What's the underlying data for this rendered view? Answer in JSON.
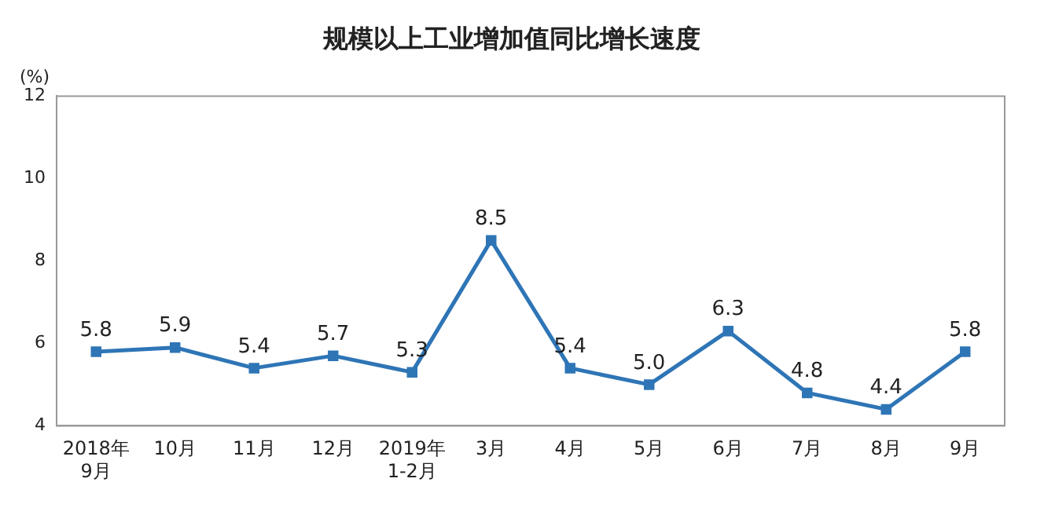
{
  "chart_data": {
    "type": "line",
    "title": "规模以上工业增加值同比增长速度",
    "ylabel": "(%)",
    "categories": [
      "2018年\n9月",
      "10月",
      "11月",
      "12月",
      "2019年\n1-2月",
      "3月",
      "4月",
      "5月",
      "6月",
      "7月",
      "8月",
      "9月"
    ],
    "series": [
      {
        "color": "#2e75b6",
        "values": [
          5.8,
          5.9,
          5.4,
          5.7,
          5.3,
          8.5,
          5.4,
          5.0,
          6.3,
          4.8,
          4.4,
          5.8
        ]
      }
    ],
    "value_labels": [
      "5.8",
      "5.9",
      "5.4",
      "5.7",
      "5.3",
      "8.5",
      "5.4",
      "5.0",
      "6.3",
      "4.8",
      "4.4",
      "5.8"
    ],
    "ylim": [
      4,
      12
    ],
    "yticks": [
      4,
      6,
      8,
      10,
      12
    ],
    "grid": false,
    "legend": false,
    "marker": "square",
    "line_style": "solid"
  }
}
